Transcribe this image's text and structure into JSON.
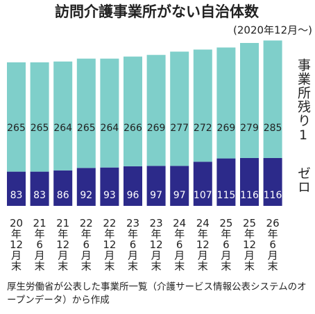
{
  "chart_data": {
    "type": "stacked_bar",
    "title": "訪問介護事業所がない自治体数",
    "subtitle": "(2020年12月〜)",
    "categories": [
      "20年12月末",
      "21年6月末",
      "21年12月末",
      "22年6月末",
      "22年12月末",
      "23年6月末",
      "23年12月末",
      "24年6月末",
      "24年12月末",
      "25年6月末",
      "25年12月末",
      "26年6月末"
    ],
    "series": [
      {
        "name": "ゼロ",
        "color": "#2c2a8a",
        "values": [
          83,
          83,
          86,
          92,
          93,
          96,
          97,
          97,
          107,
          115,
          116,
          116
        ]
      },
      {
        "name": "事業所残り1",
        "color": "#7fcfca",
        "values": [
          265,
          265,
          264,
          265,
          264,
          266,
          269,
          277,
          272,
          269,
          279,
          285
        ]
      }
    ],
    "note": "厚生労働省が公表した事業所一覧（介護サービス情報公表システムのオープンデータ）から作成"
  }
}
